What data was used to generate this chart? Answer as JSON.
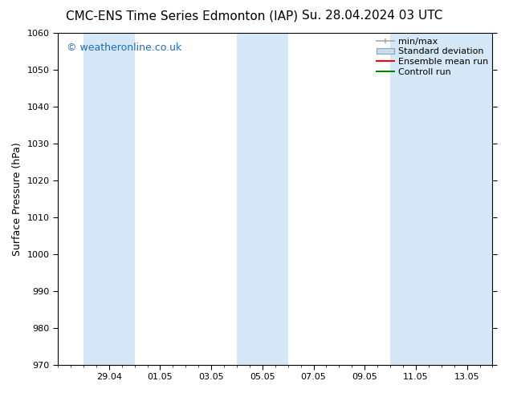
{
  "title_left": "CMC-ENS Time Series Edmonton (IAP)",
  "title_right": "Su. 28.04.2024 03 UTC",
  "ylabel": "Surface Pressure (hPa)",
  "ylim": [
    970,
    1060
  ],
  "yticks": [
    970,
    980,
    990,
    1000,
    1010,
    1020,
    1030,
    1040,
    1050,
    1060
  ],
  "shaded_color": "#d6e8f7",
  "background_color": "#ffffff",
  "plot_bg_color": "#ffffff",
  "watermark_text": "© weatheronline.co.uk",
  "watermark_color": "#1a6ec7",
  "legend_entries": [
    {
      "label": "min/max",
      "color": "#aaaaaa",
      "style": "errorbar"
    },
    {
      "label": "Standard deviation",
      "color": "#c8ddef",
      "style": "rect"
    },
    {
      "label": "Ensemble mean run",
      "color": "#ff0000",
      "style": "line"
    },
    {
      "label": "Controll run",
      "color": "#008000",
      "style": "line"
    }
  ],
  "title_fontsize": 11,
  "axis_label_fontsize": 9,
  "tick_fontsize": 8,
  "legend_fontsize": 8,
  "watermark_fontsize": 9,
  "shaded_bands": [
    {
      "start": "2024-04-28",
      "end": "2024-04-30"
    },
    {
      "start": "2024-05-04",
      "end": "2024-05-06"
    },
    {
      "start": "2024-05-10",
      "end": "2024-05-14"
    }
  ],
  "xmin": "2024-04-27",
  "xmax": "2024-05-14",
  "xtick_dates": [
    "2024-04-29",
    "2024-05-01",
    "2024-05-03",
    "2024-05-05",
    "2024-05-07",
    "2024-05-09",
    "2024-05-11",
    "2024-05-13"
  ],
  "xtick_labels": [
    "29.04",
    "01.05",
    "03.05",
    "05.05",
    "07.05",
    "09.05",
    "11.05",
    "13.05"
  ]
}
